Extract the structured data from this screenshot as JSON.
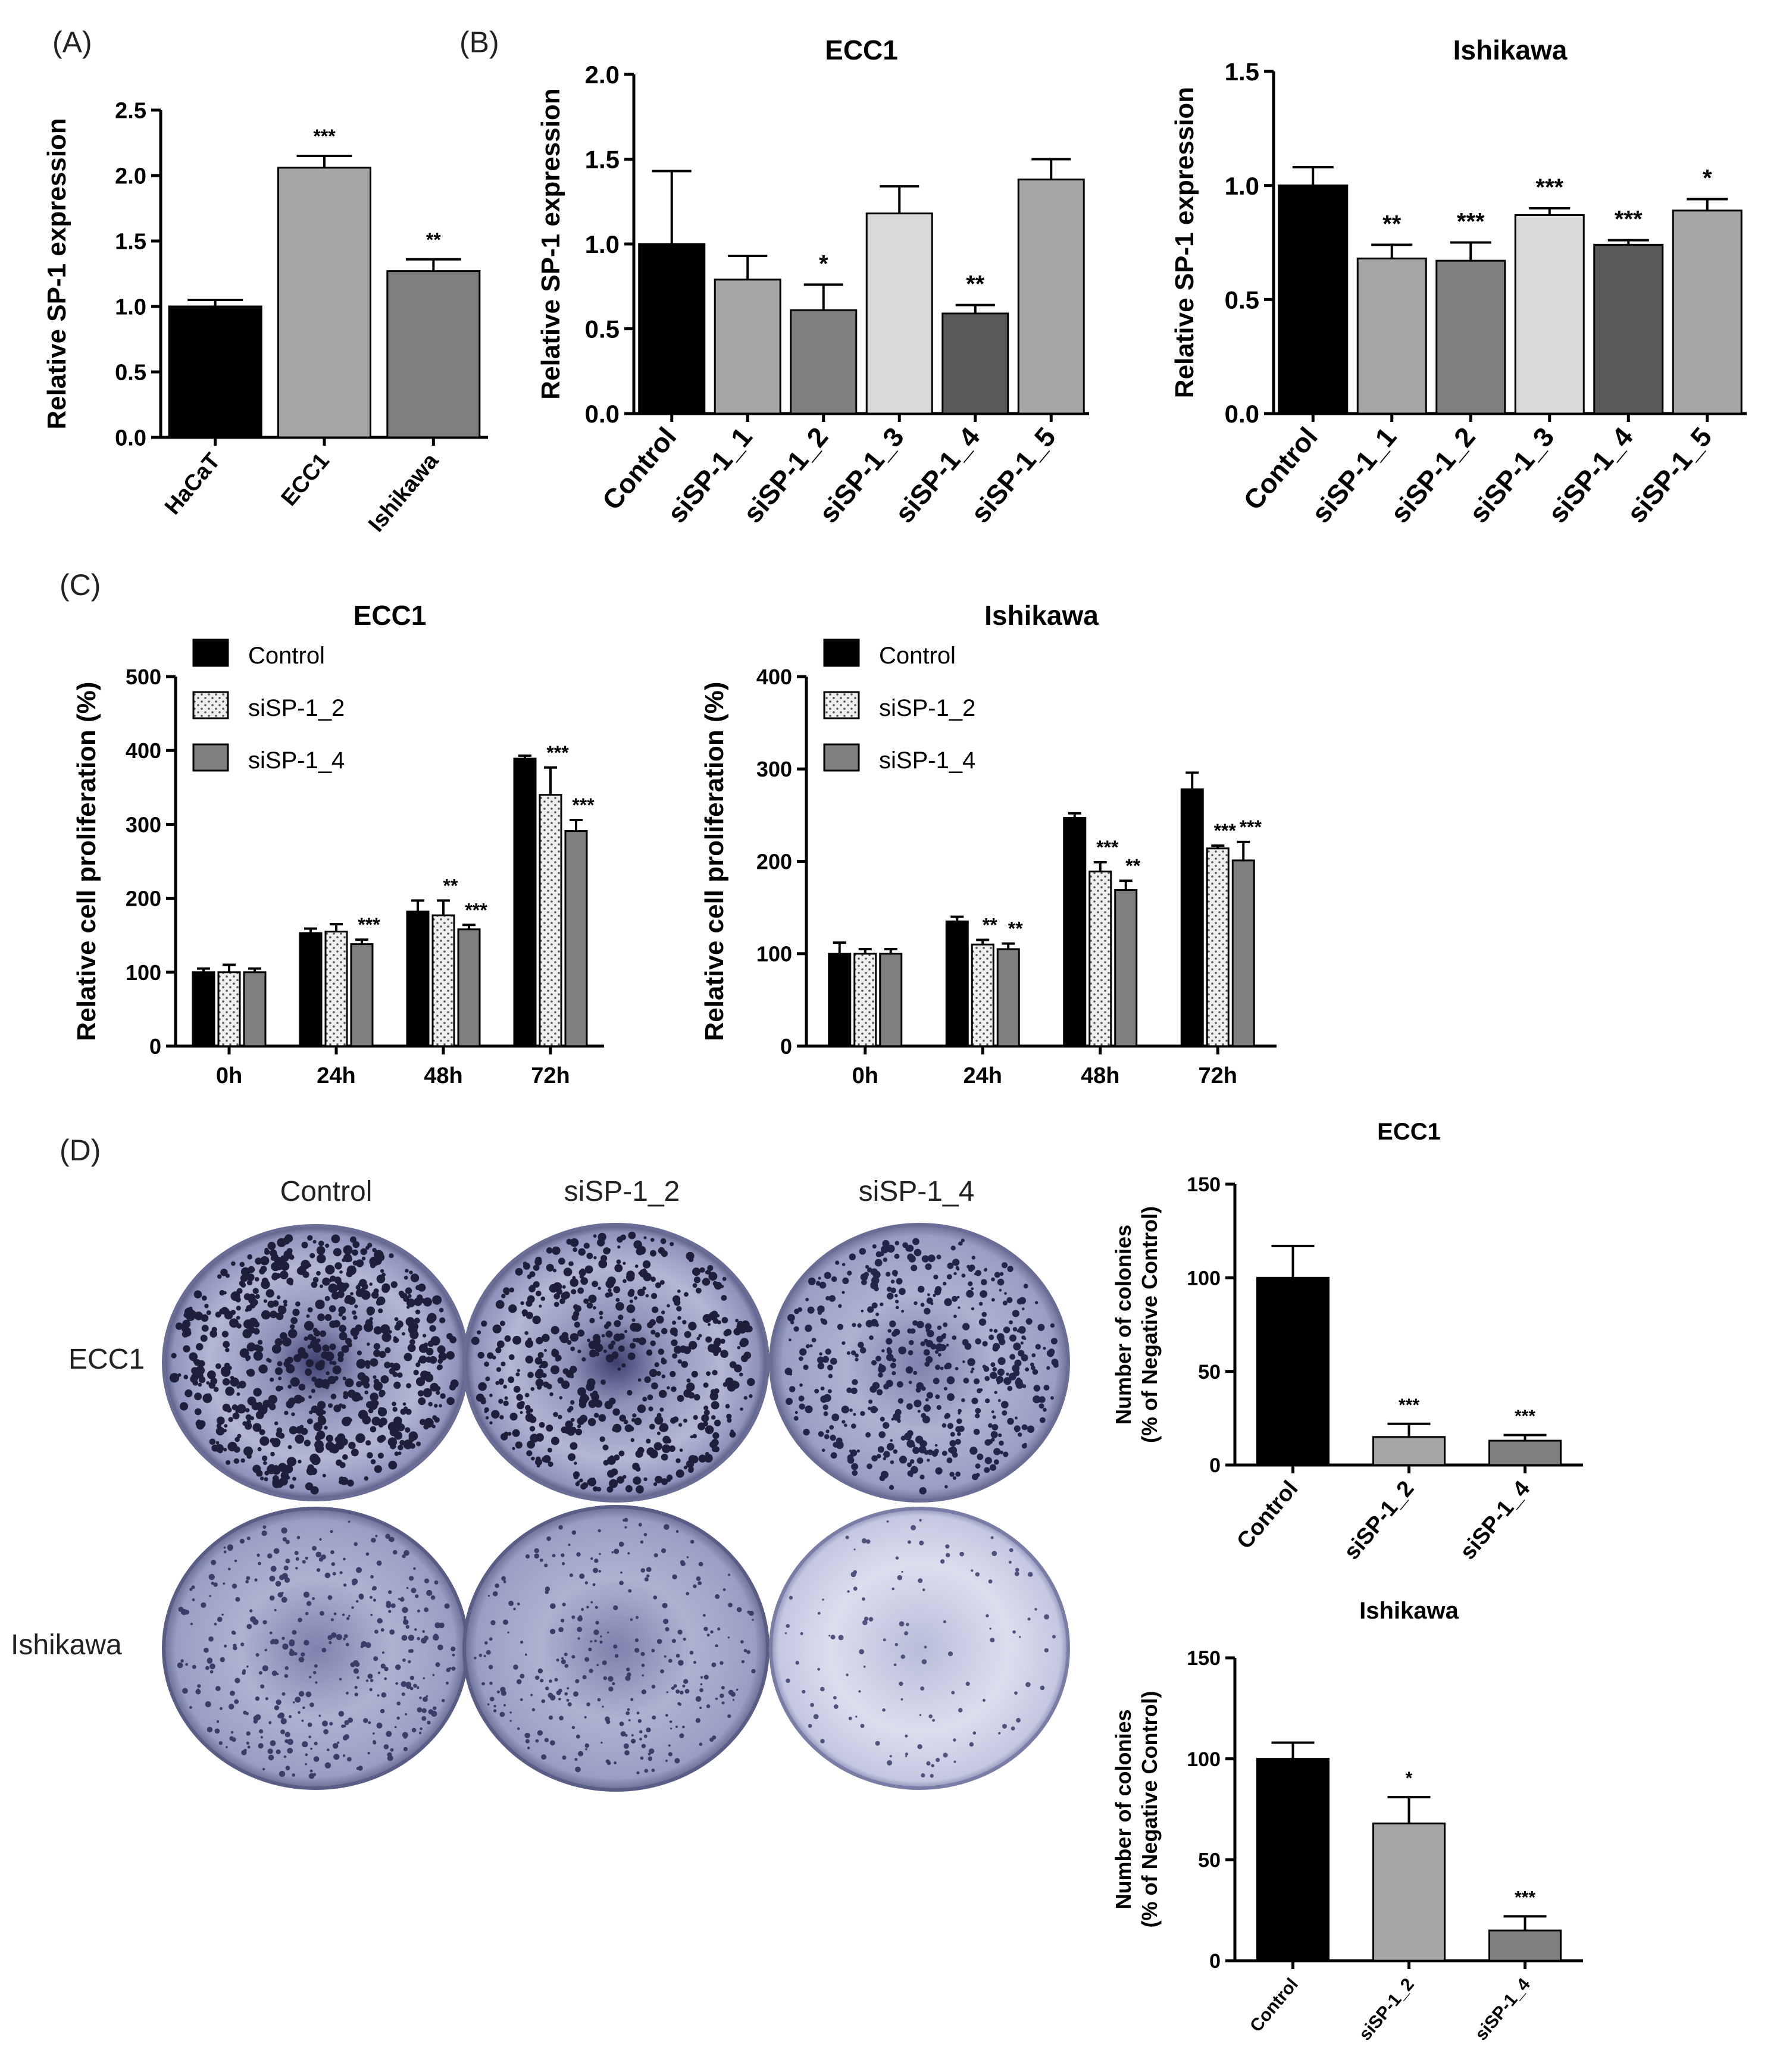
{
  "panels": {
    "A": "(A)",
    "B": "(B)",
    "C": "(C)",
    "D": "(D)"
  },
  "plates": {
    "column_labels": [
      "Control",
      "siSP-1_2",
      "siSP-1_4"
    ],
    "row_labels": [
      "ECC1",
      "Ishikawa"
    ]
  },
  "chart_data": [
    {
      "id": "A",
      "type": "bar",
      "title": "",
      "ylabel": "Relative SP-1 expression",
      "xlabel": "",
      "ylim": [
        0,
        2.5
      ],
      "yticks": [
        "0.0",
        "0.5",
        "1.0",
        "1.5",
        "2.0",
        "2.5"
      ],
      "categories": [
        "HaCaT",
        "ECC1",
        "Ishikawa"
      ],
      "values": [
        1.0,
        2.06,
        1.27
      ],
      "errors": [
        0.05,
        0.09,
        0.09
      ],
      "significance": [
        "",
        "***",
        "**"
      ],
      "colors": [
        "#000000",
        "#a6a6a6",
        "#7f7f7f"
      ]
    },
    {
      "id": "B1",
      "type": "bar",
      "title": "ECC1",
      "ylabel": "Relative SP-1 expression",
      "xlabel": "",
      "ylim": [
        0,
        2.0
      ],
      "yticks": [
        "0.0",
        "0.5",
        "1.0",
        "1.5",
        "2.0"
      ],
      "categories": [
        "Control",
        "siSP-1_1",
        "siSP-1_2",
        "siSP-1_3",
        "siSP-1_4",
        "siSP-1_5"
      ],
      "values": [
        1.0,
        0.79,
        0.61,
        1.18,
        0.59,
        1.38
      ],
      "errors": [
        0.43,
        0.14,
        0.15,
        0.16,
        0.05,
        0.12
      ],
      "significance": [
        "",
        "",
        "*",
        "",
        "**",
        ""
      ],
      "colors": [
        "#000000",
        "#a6a6a6",
        "#7f7f7f",
        "#d9d9d9",
        "#595959",
        "#a6a6a6"
      ]
    },
    {
      "id": "B2",
      "type": "bar",
      "title": "Ishikawa",
      "ylabel": "Relative SP-1 expression",
      "xlabel": "",
      "ylim": [
        0,
        1.5
      ],
      "yticks": [
        "0.0",
        "0.5",
        "1.0",
        "1.5"
      ],
      "categories": [
        "Control",
        "siSP-1_1",
        "siSP-1_2",
        "siSP-1_3",
        "siSP-1_4",
        "siSP-1_5"
      ],
      "values": [
        1.0,
        0.68,
        0.67,
        0.87,
        0.74,
        0.89
      ],
      "errors": [
        0.08,
        0.06,
        0.08,
        0.03,
        0.02,
        0.05
      ],
      "significance": [
        "",
        "**",
        "***",
        "***",
        "***",
        "*"
      ],
      "colors": [
        "#000000",
        "#a6a6a6",
        "#7f7f7f",
        "#d9d9d9",
        "#595959",
        "#a6a6a6"
      ]
    },
    {
      "id": "C1",
      "type": "bar",
      "title": "ECC1",
      "ylabel": "Relative cell proliferation (%)",
      "xlabel": "",
      "ylim": [
        0,
        500
      ],
      "yticks": [
        "0",
        "100",
        "200",
        "300",
        "400",
        "500"
      ],
      "categories": [
        "0h",
        "24h",
        "48h",
        "72h"
      ],
      "series": [
        {
          "name": "Control",
          "values": [
            100,
            153,
            182,
            389
          ],
          "errors": [
            5,
            6,
            15,
            4
          ],
          "significance": [
            "",
            "",
            "",
            ""
          ]
        },
        {
          "name": "siSP-1_2",
          "values": [
            100,
            155,
            177,
            340
          ],
          "errors": [
            10,
            10,
            20,
            37
          ],
          "significance": [
            "",
            "",
            "**",
            "***"
          ]
        },
        {
          "name": "siSP-1_4",
          "values": [
            100,
            138,
            158,
            291
          ],
          "errors": [
            5,
            6,
            6,
            15
          ],
          "significance": [
            "",
            "***",
            "***",
            "***"
          ]
        }
      ],
      "legend": [
        "Control",
        "siSP-1_2",
        "siSP-1_4"
      ]
    },
    {
      "id": "C2",
      "type": "bar",
      "title": "Ishikawa",
      "ylabel": "Relative cell proliferation (%)",
      "xlabel": "",
      "ylim": [
        0,
        400
      ],
      "yticks": [
        "0",
        "100",
        "200",
        "300",
        "400"
      ],
      "categories": [
        "0h",
        "24h",
        "48h",
        "72h"
      ],
      "series": [
        {
          "name": "Control",
          "values": [
            100,
            135,
            247,
            278
          ],
          "errors": [
            12,
            5,
            5,
            18
          ],
          "significance": [
            "",
            "",
            "",
            ""
          ]
        },
        {
          "name": "siSP-1_2",
          "values": [
            100,
            110,
            189,
            214
          ],
          "errors": [
            5,
            5,
            10,
            3
          ],
          "significance": [
            "",
            "**",
            "***",
            "***"
          ]
        },
        {
          "name": "siSP-1_4",
          "values": [
            100,
            105,
            169,
            201
          ],
          "errors": [
            5,
            6,
            10,
            20
          ],
          "significance": [
            "",
            "**",
            "**",
            "***"
          ]
        }
      ],
      "legend": [
        "Control",
        "siSP-1_2",
        "siSP-1_4"
      ]
    },
    {
      "id": "D1",
      "type": "bar",
      "title": "ECC1",
      "ylabel": [
        "Number of colonies",
        "(% of Negative Control)"
      ],
      "xlabel": "",
      "ylim": [
        0,
        150
      ],
      "yticks": [
        "0",
        "50",
        "100",
        "150"
      ],
      "categories": [
        "Control",
        "siSP-1_2",
        "siSP-1_4"
      ],
      "values": [
        100,
        15,
        13
      ],
      "errors": [
        17,
        7,
        3
      ],
      "significance": [
        "",
        "***",
        "***"
      ],
      "colors": [
        "#000000",
        "#a6a6a6",
        "#7f7f7f"
      ]
    },
    {
      "id": "D2",
      "type": "bar",
      "title": "Ishikawa",
      "ylabel": [
        "Number of colonies",
        "(% of Negative Control)"
      ],
      "xlabel": "",
      "ylim": [
        0,
        150
      ],
      "yticks": [
        "0",
        "50",
        "100",
        "150"
      ],
      "categories": [
        "Control",
        "siSP-1_2",
        "siSP-1_4"
      ],
      "values": [
        100,
        68,
        15
      ],
      "errors": [
        8,
        13,
        7
      ],
      "significance": [
        "",
        "*",
        "***"
      ],
      "colors": [
        "#000000",
        "#a6a6a6",
        "#7f7f7f"
      ]
    }
  ]
}
